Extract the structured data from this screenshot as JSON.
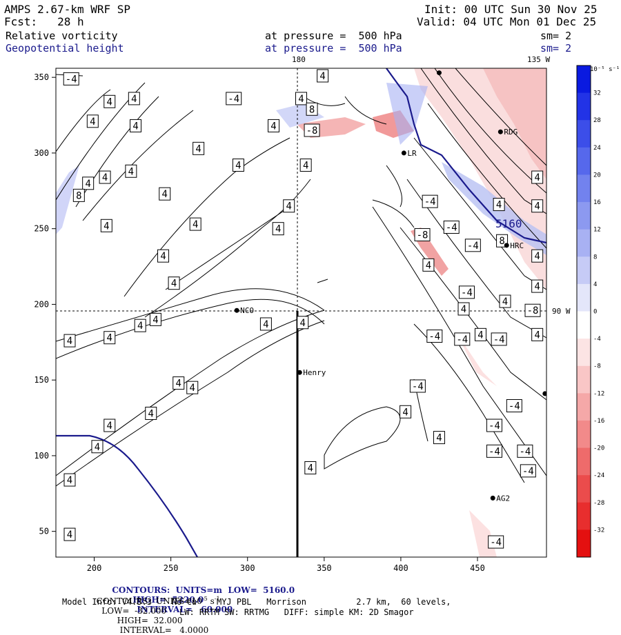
{
  "header": {
    "model": "AMPS 2.67-km WRF SP",
    "init": "Init: 00 UTC Sun 30 Nov 25",
    "fcst": "Fcst:   28 h",
    "valid": "Valid: 04 UTC Mon 01 Dec 25",
    "field1": "Relative vorticity",
    "field1_level": "at pressure =  500 hPa",
    "field1_sm": "sm= 2",
    "field2": "Geopotential height",
    "field2_level": "at pressure =  500 hPa",
    "field2_sm": "sm= 2"
  },
  "map_labels": {
    "lon_180": "180",
    "lon_135w": "135 W",
    "lat_90w": "90 W",
    "height_label": "5160"
  },
  "stations": [
    {
      "name": "RDG",
      "x": 465,
      "y": 314
    },
    {
      "name": "HRC",
      "x": 469,
      "y": 239
    },
    {
      "name": "NCO",
      "x": 293,
      "y": 196
    },
    {
      "name": "Henry",
      "x": 334,
      "y": 155
    },
    {
      "name": "AG2",
      "x": 460,
      "y": 72
    },
    {
      "name": "LR",
      "x": 402,
      "y": 300
    },
    {
      "name": "",
      "x": 425,
      "y": 353
    },
    {
      "name": "",
      "x": 494,
      "y": 141
    }
  ],
  "contour_labels": [
    {
      "t": "-4",
      "x": 185,
      "y": 349
    },
    {
      "t": "4",
      "x": 210,
      "y": 334
    },
    {
      "t": "4",
      "x": 226,
      "y": 336
    },
    {
      "t": "4",
      "x": 199,
      "y": 321
    },
    {
      "t": "4",
      "x": 227,
      "y": 318
    },
    {
      "t": "4",
      "x": 196,
      "y": 280
    },
    {
      "t": "4",
      "x": 207,
      "y": 284
    },
    {
      "t": "4",
      "x": 224,
      "y": 288
    },
    {
      "t": "8",
      "x": 190,
      "y": 272
    },
    {
      "t": "4",
      "x": 208,
      "y": 252
    },
    {
      "t": "4",
      "x": 246,
      "y": 273
    },
    {
      "t": "4",
      "x": 266,
      "y": 253
    },
    {
      "t": "4",
      "x": 294,
      "y": 292
    },
    {
      "t": "4",
      "x": 268,
      "y": 303
    },
    {
      "t": "4",
      "x": 245,
      "y": 232
    },
    {
      "t": "4",
      "x": 252,
      "y": 214
    },
    {
      "t": "4",
      "x": 240,
      "y": 190
    },
    {
      "t": "4",
      "x": 230,
      "y": 186
    },
    {
      "t": "4",
      "x": 210,
      "y": 178
    },
    {
      "t": "4",
      "x": 184,
      "y": 176
    },
    {
      "t": "4",
      "x": 264,
      "y": 145
    },
    {
      "t": "4",
      "x": 255,
      "y": 148
    },
    {
      "t": "4",
      "x": 237,
      "y": 128
    },
    {
      "t": "4",
      "x": 210,
      "y": 120
    },
    {
      "t": "4",
      "x": 202,
      "y": 106
    },
    {
      "t": "4",
      "x": 184,
      "y": 84
    },
    {
      "t": "4",
      "x": 184,
      "y": 48
    },
    {
      "t": "-4",
      "x": 291,
      "y": 336
    },
    {
      "t": "4",
      "x": 317,
      "y": 318
    },
    {
      "t": "4",
      "x": 335,
      "y": 336
    },
    {
      "t": "4",
      "x": 349,
      "y": 351
    },
    {
      "t": "8",
      "x": 342,
      "y": 329
    },
    {
      "t": "-8",
      "x": 342,
      "y": 315
    },
    {
      "t": "4",
      "x": 338,
      "y": 292
    },
    {
      "t": "4",
      "x": 327,
      "y": 265
    },
    {
      "t": "4",
      "x": 320,
      "y": 250
    },
    {
      "t": "4",
      "x": 336,
      "y": 188
    },
    {
      "t": "4",
      "x": 312,
      "y": 187
    },
    {
      "t": "-4",
      "x": 419,
      "y": 268
    },
    {
      "t": "-4",
      "x": 433,
      "y": 251
    },
    {
      "t": "-8",
      "x": 414,
      "y": 246
    },
    {
      "t": "4",
      "x": 418,
      "y": 226
    },
    {
      "t": "-4",
      "x": 447,
      "y": 239
    },
    {
      "t": "-4",
      "x": 443,
      "y": 208
    },
    {
      "t": "4",
      "x": 441,
      "y": 197
    },
    {
      "t": "-4",
      "x": 422,
      "y": 179
    },
    {
      "t": "-4",
      "x": 440,
      "y": 177
    },
    {
      "t": "-4",
      "x": 464,
      "y": 177
    },
    {
      "t": "4",
      "x": 452,
      "y": 180
    },
    {
      "t": "-4",
      "x": 411,
      "y": 146
    },
    {
      "t": "-4",
      "x": 474,
      "y": 133
    },
    {
      "t": "-4",
      "x": 461,
      "y": 120
    },
    {
      "t": "4",
      "x": 403,
      "y": 129
    },
    {
      "t": "4",
      "x": 425,
      "y": 112
    },
    {
      "t": "-4",
      "x": 461,
      "y": 103
    },
    {
      "t": "-4",
      "x": 481,
      "y": 103
    },
    {
      "t": "-4",
      "x": 483,
      "y": 90
    },
    {
      "t": "4",
      "x": 341,
      "y": 92
    },
    {
      "t": "-4",
      "x": 462,
      "y": 43
    },
    {
      "t": "4",
      "x": 464,
      "y": 266
    },
    {
      "t": "4",
      "x": 489,
      "y": 284
    },
    {
      "t": "4",
      "x": 489,
      "y": 265
    },
    {
      "t": "8",
      "x": 466,
      "y": 242
    },
    {
      "t": "4",
      "x": 489,
      "y": 232
    },
    {
      "t": "4",
      "x": 489,
      "y": 212
    },
    {
      "t": "4",
      "x": 468,
      "y": 202
    },
    {
      "t": "-8",
      "x": 486,
      "y": 196
    },
    {
      "t": "4",
      "x": 489,
      "y": 180
    }
  ],
  "colorbar": {
    "unit": "10⁻⁵ s⁻¹",
    "ticks": [
      "32",
      "28",
      "24",
      "20",
      "16",
      "12",
      "8",
      "4",
      "0",
      "-4",
      "-8",
      "-12",
      "-16",
      "-20",
      "-24",
      "-28",
      "-32"
    ],
    "colors": [
      "#0a1ae0",
      "#2233e6",
      "#3c4ee9",
      "#5668ec",
      "#7282ee",
      "#8c99f0",
      "#a8b1f3",
      "#c6cbf6",
      "#e4e6fa",
      "#ffffff",
      "#fce4e4",
      "#f9c6c6",
      "#f5a8a8",
      "#f28a8a",
      "#ee6b6b",
      "#eb4c4c",
      "#e82e2e",
      "#e41010"
    ]
  },
  "chart_data": {
    "type": "contour-map",
    "x_axis": {
      "ticks": [
        "200",
        "250",
        "300",
        "350",
        "400",
        "450"
      ],
      "range": [
        175,
        495
      ]
    },
    "y_axis": {
      "ticks": [
        "50",
        "100",
        "150",
        "200",
        "250",
        "300",
        "350"
      ],
      "range": [
        33,
        356
      ]
    },
    "height_contour": {
      "value": 5160
    },
    "contours_height": {
      "units": "m",
      "low": 5160.0,
      "high": 5220.0,
      "interval": 60.0
    },
    "contours_vorticity": {
      "units": "10^-5 s^-1",
      "low": -32.0,
      "high": 32.0,
      "interval": 4.0
    }
  },
  "footer": {
    "line1_a": "CONTOURS:  UNITS=m  LOW=  5160.0",
    "line1_b": "HIGH=  5220.0",
    "line1_c": "INTERVAL=   60.000",
    "line2_a": "CONTOURS:  UNITS=10",
    "line2_sup": "-5",
    "line2_unit": " s",
    "line2_sup2": "-1",
    "line2_b": "  LOW=  -32.000",
    "line2_c": "HIGH=  32.000",
    "line2_d": "INTERVAL=   4.0000",
    "line3": "Model Info: V4.3.3    No Cu    MYJ PBL   Morrison          2.7 km,  60 levels,",
    "line4": "LW: RRTM SW: RRTMG   DIFF: simple KM: 2D Smagor"
  }
}
